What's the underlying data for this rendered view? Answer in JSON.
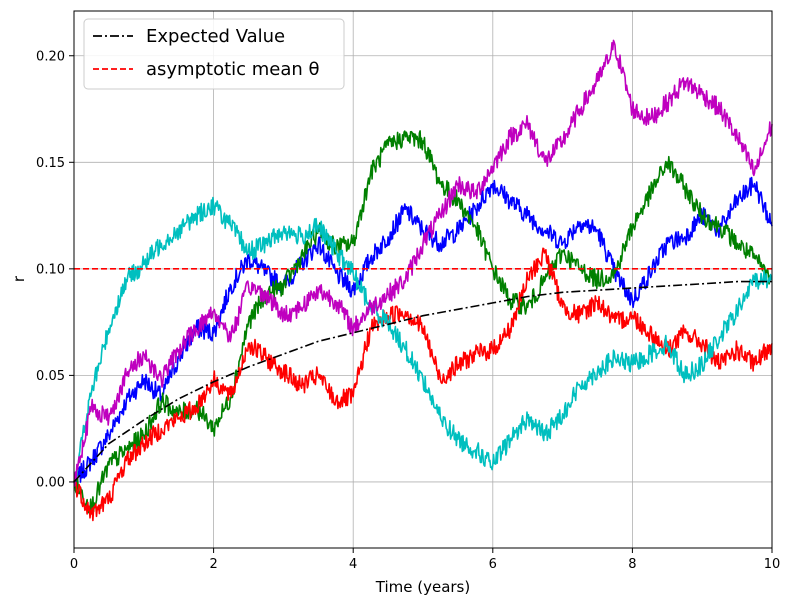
{
  "chart_data": {
    "type": "line",
    "title": "",
    "xlabel": "Time (years)",
    "ylabel": "r",
    "xlim": [
      0,
      10
    ],
    "ylim": [
      -0.031,
      0.221
    ],
    "x_ticks": [
      0,
      2,
      4,
      6,
      8,
      10
    ],
    "y_ticks": [
      0.0,
      0.05,
      0.1,
      0.15,
      0.2
    ],
    "x_tick_labels": [
      "0",
      "2",
      "4",
      "6",
      "8",
      "10"
    ],
    "y_tick_labels": [
      "0.00",
      "0.05",
      "0.10",
      "0.15",
      "0.20"
    ],
    "grid": true,
    "legend_position": "top-left",
    "legend": [
      {
        "label": "Expected Value",
        "color": "#000000",
        "dash": "dashdot"
      },
      {
        "label": "asymptotic mean θ",
        "color": "#ff0000",
        "dash": "dashed"
      }
    ],
    "theta": 0.1,
    "expected_value": {
      "x": [
        0,
        0.5,
        1,
        1.5,
        2,
        2.5,
        3,
        3.5,
        4,
        4.5,
        5,
        5.5,
        6,
        6.5,
        7,
        7.5,
        8,
        8.5,
        9,
        9.5,
        10
      ],
      "y": [
        0.0,
        0.018,
        0.029,
        0.039,
        0.047,
        0.054,
        0.06,
        0.066,
        0.07,
        0.074,
        0.078,
        0.081,
        0.084,
        0.087,
        0.089,
        0.09,
        0.091,
        0.092,
        0.093,
        0.094,
        0.094
      ]
    },
    "series": [
      {
        "color": "#0000ff",
        "x": [
          0,
          0.25,
          0.5,
          0.75,
          1,
          1.25,
          1.5,
          1.75,
          2,
          2.25,
          2.5,
          2.75,
          3,
          3.25,
          3.5,
          3.75,
          4,
          4.25,
          4.5,
          4.75,
          5,
          5.25,
          5.5,
          5.75,
          6,
          6.25,
          6.5,
          6.75,
          7,
          7.25,
          7.5,
          7.75,
          8,
          8.25,
          8.5,
          8.75,
          9,
          9.25,
          9.5,
          9.75,
          10
        ],
        "y": [
          0.0,
          0.01,
          0.022,
          0.038,
          0.048,
          0.04,
          0.058,
          0.072,
          0.07,
          0.092,
          0.105,
          0.098,
          0.092,
          0.102,
          0.112,
          0.098,
          0.09,
          0.105,
          0.115,
          0.128,
          0.118,
          0.112,
          0.118,
          0.128,
          0.14,
          0.132,
          0.125,
          0.118,
          0.112,
          0.122,
          0.118,
          0.098,
          0.085,
          0.098,
          0.112,
          0.115,
          0.125,
          0.118,
          0.132,
          0.14,
          0.12
        ]
      },
      {
        "color": "#008000",
        "x": [
          0,
          0.25,
          0.5,
          0.75,
          1,
          1.25,
          1.5,
          1.75,
          2,
          2.25,
          2.5,
          2.75,
          3,
          3.25,
          3.5,
          3.75,
          4,
          4.25,
          4.5,
          4.75,
          5,
          5.25,
          5.5,
          5.75,
          6,
          6.25,
          6.5,
          6.75,
          7,
          7.25,
          7.5,
          7.75,
          8,
          8.25,
          8.5,
          8.75,
          9,
          9.25,
          9.5,
          9.75,
          10
        ],
        "y": [
          0.0,
          -0.012,
          0.008,
          0.015,
          0.022,
          0.038,
          0.032,
          0.035,
          0.025,
          0.04,
          0.075,
          0.088,
          0.092,
          0.105,
          0.118,
          0.11,
          0.112,
          0.145,
          0.158,
          0.162,
          0.16,
          0.14,
          0.132,
          0.12,
          0.1,
          0.085,
          0.082,
          0.095,
          0.108,
          0.1,
          0.095,
          0.098,
          0.12,
          0.135,
          0.15,
          0.138,
          0.125,
          0.12,
          0.112,
          0.105,
          0.095
        ]
      },
      {
        "color": "#ff0000",
        "x": [
          0,
          0.25,
          0.5,
          0.75,
          1,
          1.25,
          1.5,
          1.75,
          2,
          2.25,
          2.5,
          2.75,
          3,
          3.25,
          3.5,
          3.75,
          4,
          4.25,
          4.5,
          4.75,
          5,
          5.25,
          5.5,
          5.75,
          6,
          6.25,
          6.5,
          6.75,
          7,
          7.25,
          7.5,
          7.75,
          8,
          8.25,
          8.5,
          8.75,
          9,
          9.25,
          9.5,
          9.75,
          10
        ],
        "y": [
          0.0,
          -0.015,
          -0.008,
          0.01,
          0.018,
          0.025,
          0.03,
          0.035,
          0.048,
          0.04,
          0.065,
          0.058,
          0.052,
          0.045,
          0.05,
          0.038,
          0.04,
          0.072,
          0.078,
          0.08,
          0.072,
          0.048,
          0.055,
          0.06,
          0.062,
          0.072,
          0.095,
          0.108,
          0.082,
          0.078,
          0.085,
          0.075,
          0.078,
          0.07,
          0.062,
          0.07,
          0.065,
          0.055,
          0.062,
          0.055,
          0.065
        ]
      },
      {
        "color": "#00bfbf",
        "x": [
          0,
          0.25,
          0.5,
          0.75,
          1,
          1.25,
          1.5,
          1.75,
          2,
          2.25,
          2.5,
          2.75,
          3,
          3.25,
          3.5,
          3.75,
          4,
          4.25,
          4.5,
          4.75,
          5,
          5.25,
          5.5,
          5.75,
          6,
          6.25,
          6.5,
          6.75,
          7,
          7.25,
          7.5,
          7.75,
          8,
          8.25,
          8.5,
          8.75,
          9,
          9.25,
          9.5,
          9.75,
          10
        ],
        "y": [
          0.0,
          0.042,
          0.072,
          0.095,
          0.102,
          0.112,
          0.118,
          0.125,
          0.13,
          0.12,
          0.108,
          0.112,
          0.118,
          0.115,
          0.12,
          0.108,
          0.098,
          0.082,
          0.075,
          0.062,
          0.048,
          0.03,
          0.02,
          0.015,
          0.008,
          0.02,
          0.03,
          0.022,
          0.032,
          0.045,
          0.052,
          0.058,
          0.055,
          0.06,
          0.065,
          0.05,
          0.055,
          0.068,
          0.08,
          0.095,
          0.095
        ]
      },
      {
        "color": "#bf00bf",
        "x": [
          0,
          0.25,
          0.5,
          0.75,
          1,
          1.25,
          1.5,
          1.75,
          2,
          2.25,
          2.5,
          2.75,
          3,
          3.25,
          3.5,
          3.75,
          4,
          4.25,
          4.5,
          4.75,
          5,
          5.25,
          5.5,
          5.75,
          6,
          6.25,
          6.5,
          6.75,
          7,
          7.25,
          7.5,
          7.75,
          8,
          8.25,
          8.5,
          8.75,
          9,
          9.25,
          9.5,
          9.75,
          10
        ],
        "y": [
          0.0,
          0.035,
          0.03,
          0.05,
          0.06,
          0.048,
          0.062,
          0.072,
          0.08,
          0.068,
          0.092,
          0.088,
          0.078,
          0.082,
          0.09,
          0.085,
          0.072,
          0.082,
          0.088,
          0.095,
          0.112,
          0.125,
          0.14,
          0.135,
          0.148,
          0.162,
          0.168,
          0.15,
          0.16,
          0.175,
          0.188,
          0.205,
          0.175,
          0.17,
          0.178,
          0.188,
          0.182,
          0.175,
          0.162,
          0.145,
          0.168
        ]
      }
    ]
  }
}
